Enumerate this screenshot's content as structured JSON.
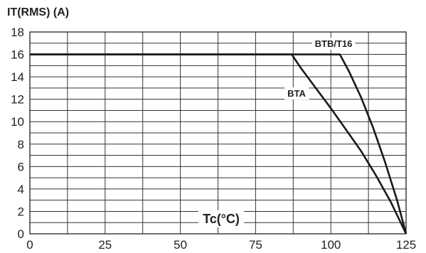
{
  "chart_data": {
    "type": "line",
    "ylabel": "IT(RMS) (A)",
    "xlabel": "Tc(°C)",
    "xlim": [
      0,
      125
    ],
    "ylim": [
      0,
      18
    ],
    "x_ticks": [
      0,
      25,
      50,
      75,
      100,
      125
    ],
    "y_ticks": [
      0,
      2,
      4,
      6,
      8,
      10,
      12,
      14,
      16,
      18
    ],
    "x_minor_step": 12.5,
    "y_minor_step": 1,
    "grid": true,
    "series": [
      {
        "name": "BTA",
        "x": [
          0,
          87,
          90,
          95,
          100,
          105,
          110,
          115,
          120,
          125
        ],
        "y": [
          16,
          16,
          14.8,
          13,
          11.2,
          9.3,
          7.4,
          5.2,
          2.8,
          0
        ]
      },
      {
        "name": "BTB/T16",
        "x": [
          0,
          103,
          106,
          110,
          114,
          118,
          122,
          125
        ],
        "y": [
          16,
          16,
          14.5,
          12.2,
          9.5,
          6.4,
          3,
          0
        ]
      }
    ]
  }
}
